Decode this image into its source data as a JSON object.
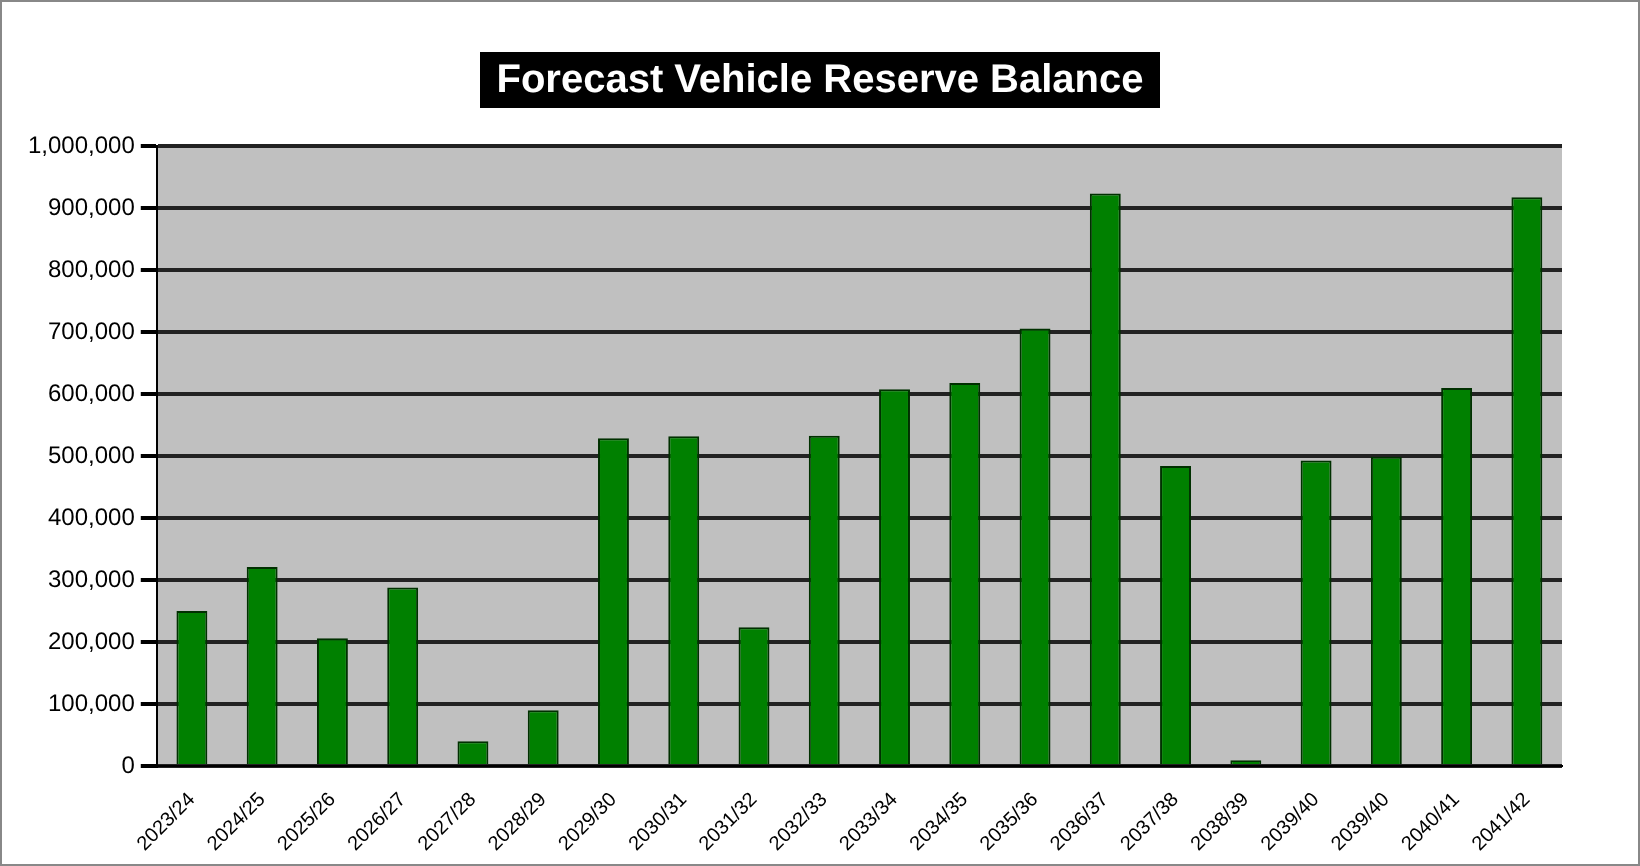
{
  "chart_data": {
    "type": "bar",
    "title": "Forecast Vehicle Reserve Balance",
    "categories": [
      "2023/24",
      "2024/25",
      "2025/26",
      "2026/27",
      "2027/28",
      "2028/29",
      "2029/30",
      "2030/31",
      "2031/32",
      "2032/33",
      "2033/34",
      "2034/35",
      "2035/36",
      "2036/37",
      "2037/38",
      "2038/39",
      "2039/40",
      "2039/40",
      "2040/41",
      "2041/42"
    ],
    "values": [
      250000,
      321000,
      206000,
      288000,
      40000,
      90000,
      529000,
      532000,
      224000,
      533000,
      608000,
      618000,
      706000,
      924000,
      484000,
      9000,
      493000,
      499000,
      610000,
      918000
    ],
    "color": "#008000",
    "ylim": [
      0,
      1000000
    ],
    "yticks": [
      0,
      {
        "value": 100000,
        "label": "100,000"
      },
      {
        "value": 200000,
        "label": "200,000"
      },
      {
        "value": 300000,
        "label": "300,000"
      },
      {
        "value": 400000,
        "label": "400,000"
      },
      {
        "value": 500000,
        "label": "500,000"
      },
      {
        "value": 600000,
        "label": "600,000"
      },
      {
        "value": 700000,
        "label": "700,000"
      },
      {
        "value": 800000,
        "label": "800,000"
      },
      {
        "value": 900000,
        "label": "900,000"
      },
      {
        "value": 1000000,
        "label": "1,000,000"
      }
    ],
    "grid": "y",
    "legend": false
  }
}
